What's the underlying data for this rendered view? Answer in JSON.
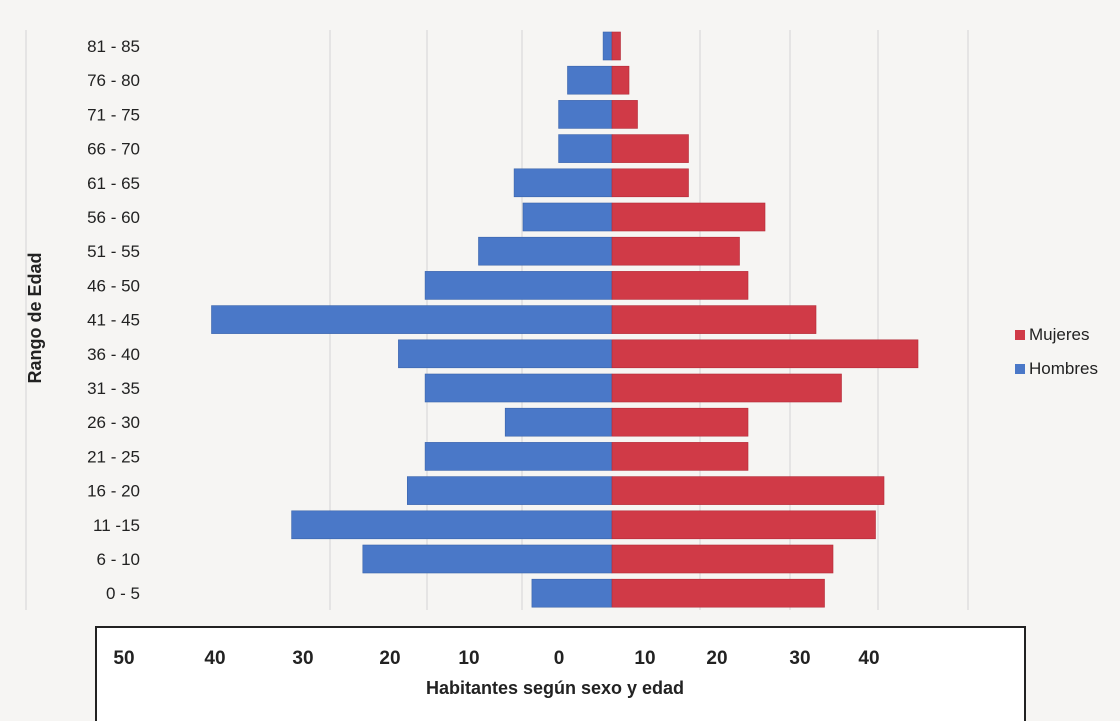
{
  "chart_data": {
    "type": "bar",
    "orientation": "horizontal",
    "ylabel": "Rango de Edad",
    "xlabel": "Habitantes según sexo y edad",
    "x_tick_labels": [
      "50",
      "40",
      "30",
      "20",
      "10",
      "0",
      "10",
      "20",
      "30",
      "40"
    ],
    "categories": [
      "0 - 5",
      "6 - 10",
      "11 -15",
      "16 - 20",
      "21 - 25",
      "26 - 30",
      "31 - 35",
      "36 - 40",
      "41 - 45",
      "46 - 50",
      "51 - 55",
      "56 - 60",
      "61 - 65",
      "66 - 70",
      "71 - 75",
      "76 - 80",
      "81 - 85"
    ],
    "series": [
      {
        "name": "Mujeres",
        "color": "#d03a47",
        "values": [
          25,
          26,
          31,
          32,
          16,
          16,
          27,
          36,
          24,
          16,
          15,
          18,
          9,
          9,
          3,
          2,
          1
        ]
      },
      {
        "name": "Hombres",
        "color": "#4a78c8",
        "values": [
          9,
          28,
          36,
          23,
          21,
          12,
          21,
          24,
          45,
          21,
          15,
          10,
          11,
          6,
          6,
          5,
          1
        ]
      }
    ],
    "legend_position": "right",
    "grid": true
  }
}
